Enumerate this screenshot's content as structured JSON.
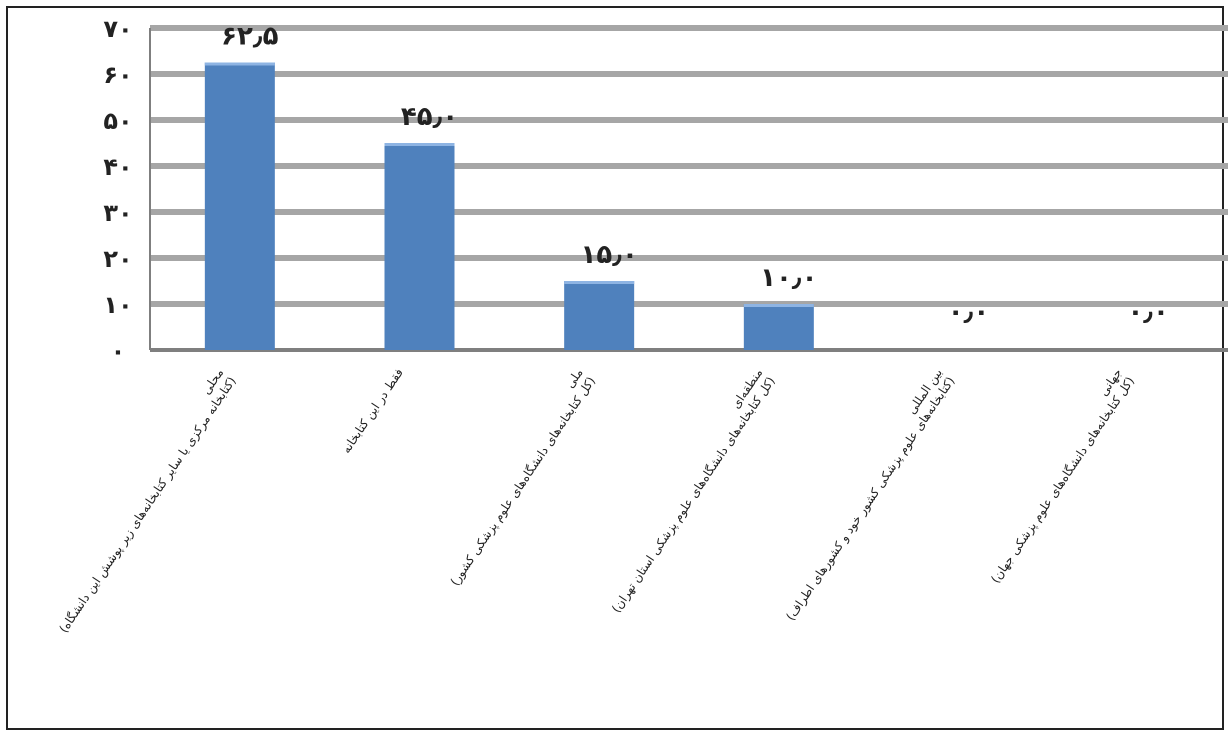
{
  "chart_data": {
    "type": "bar",
    "categories": [
      {
        "line1": "محلی",
        "line2": "(کتابخانه مرکزی یا سایر کتابخانه‌های زیر پوشش این دانشگاه)"
      },
      {
        "line1": "فقط در این کتابخانه",
        "line2": ""
      },
      {
        "line1": "ملی",
        "line2": "(کل کتابخانه‌های دانشگاه‌های علوم پزشکی کشور)"
      },
      {
        "line1": "منطقه‌ای",
        "line2": "(کل کتابخانه‌های دانشگاه‌های علوم پزشکی استان تهران)"
      },
      {
        "line1": "بین المللی",
        "line2": "(کتابخانه‌های علوم پزشکی کشور خود و کشورهای اطراف)"
      },
      {
        "line1": "جهانی",
        "line2": "(کل کتابخانه‌های دانشگاه‌های علوم پزشکی جهان)"
      }
    ],
    "values": [
      62.5,
      45.0,
      15.0,
      10.0,
      0.0,
      0.0
    ],
    "data_labels": [
      "۶۲٫۵",
      "۴۵٫۰",
      "۱۵٫۰",
      "۱۰٫۰",
      "۰٫۰",
      "۰٫۰"
    ],
    "y_ticks": [
      0,
      10,
      20,
      30,
      40,
      50,
      60,
      70
    ],
    "y_tick_labels": [
      "۰",
      "۱۰",
      "۲۰",
      "۳۰",
      "۴۰",
      "۵۰",
      "۶۰",
      "۷۰"
    ],
    "ylim": [
      0,
      70
    ],
    "title": "",
    "xlabel": "",
    "ylabel": "",
    "grid": true,
    "legend": "none",
    "colors": {
      "bar": "#4f81bd",
      "bar_top": "#8eb4e3",
      "grid": "#a6a6a6",
      "axis": "#7f7f7f",
      "text": "#222222"
    }
  }
}
